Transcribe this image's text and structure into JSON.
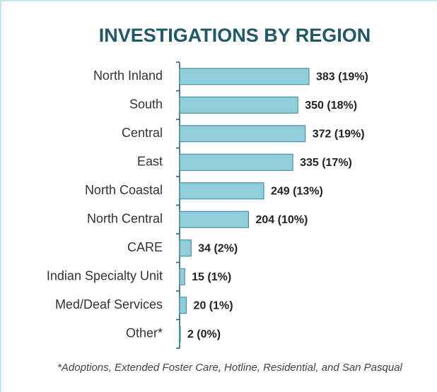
{
  "chart_data": {
    "type": "bar",
    "orientation": "horizontal",
    "title": "INVESTIGATIONS BY REGION",
    "categories": [
      "North Inland",
      "South",
      "Central",
      "East",
      "North Coastal",
      "North Central",
      "CARE",
      "Indian Specialty Unit",
      "Med/Deaf Services",
      "Other*"
    ],
    "values": [
      383,
      350,
      372,
      335,
      249,
      204,
      34,
      15,
      20,
      2
    ],
    "value_labels": [
      "383 (19%)",
      "350 (18%)",
      "372 (19%)",
      "335 (17%)",
      "249 (13%)",
      "204 (10%)",
      "34 (2%)",
      "15 (1%)",
      "20 (1%)",
      "2 (0%)"
    ],
    "color": "#92cddc",
    "edge_color": "#31849b",
    "note": "*Adoptions, Extended Foster Care, Hotline, Residential, and San Pasqual"
  }
}
